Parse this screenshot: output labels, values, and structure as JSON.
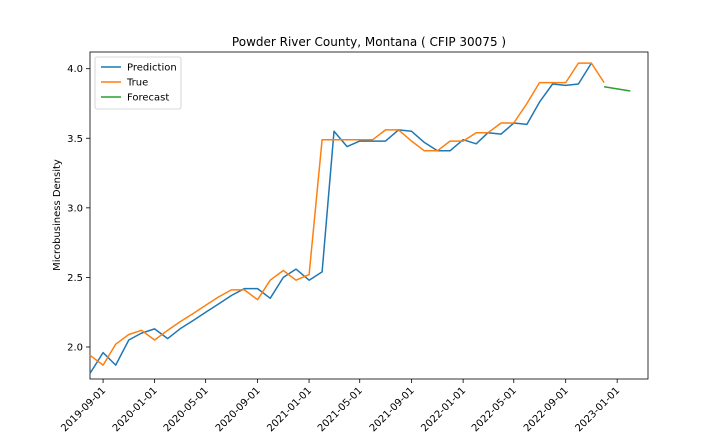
{
  "chart_data": {
    "type": "line",
    "title": "Powder River County, Montana ( CFIP 30075 )",
    "xlabel": "",
    "ylabel": "Microbusiness Density",
    "xlim": [
      "2019-08-01",
      "2023-03-15"
    ],
    "ylim": [
      1.77,
      4.12
    ],
    "x_ticks": [
      "2019-09-01",
      "2020-01-01",
      "2020-05-01",
      "2020-09-01",
      "2021-01-01",
      "2021-05-01",
      "2021-09-01",
      "2022-01-01",
      "2022-05-01",
      "2022-09-01",
      "2023-01-01"
    ],
    "y_ticks": [
      2.0,
      2.5,
      3.0,
      3.5,
      4.0
    ],
    "y_tick_labels": [
      "2.0",
      "2.5",
      "3.0",
      "3.5",
      "4.0"
    ],
    "legend_position": "top-left",
    "grid": false,
    "series": [
      {
        "name": "Prediction",
        "color": "#1f77b4",
        "x": [
          "2019-08-01",
          "2019-09-01",
          "2019-10-01",
          "2019-11-01",
          "2019-12-01",
          "2020-01-01",
          "2020-02-01",
          "2020-03-01",
          "2020-04-01",
          "2020-05-01",
          "2020-06-01",
          "2020-07-01",
          "2020-08-01",
          "2020-09-01",
          "2020-10-01",
          "2020-11-01",
          "2020-12-01",
          "2021-01-01",
          "2021-02-01",
          "2021-03-01",
          "2021-04-01",
          "2021-05-01",
          "2021-06-01",
          "2021-07-01",
          "2021-08-01",
          "2021-09-01",
          "2021-10-01",
          "2021-11-01",
          "2021-12-01",
          "2022-01-01",
          "2022-02-01",
          "2022-03-01",
          "2022-04-01",
          "2022-05-01",
          "2022-06-01",
          "2022-07-01",
          "2022-08-01",
          "2022-09-01",
          "2022-10-01",
          "2022-11-01"
        ],
        "values": [
          1.81,
          1.96,
          1.87,
          2.05,
          2.1,
          2.13,
          2.06,
          2.13,
          2.19,
          2.25,
          2.31,
          2.37,
          2.42,
          2.42,
          2.35,
          2.5,
          2.56,
          2.48,
          2.54,
          3.55,
          3.44,
          3.48,
          3.48,
          3.48,
          3.56,
          3.55,
          3.47,
          3.41,
          3.41,
          3.49,
          3.46,
          3.54,
          3.53,
          3.61,
          3.6,
          3.76,
          3.89,
          3.88,
          3.89,
          4.04
        ]
      },
      {
        "name": "True",
        "color": "#ff7f0e",
        "x": [
          "2019-08-01",
          "2019-09-01",
          "2019-10-01",
          "2019-11-01",
          "2019-12-01",
          "2020-01-01",
          "2020-02-01",
          "2020-03-01",
          "2020-04-01",
          "2020-05-01",
          "2020-06-01",
          "2020-07-01",
          "2020-08-01",
          "2020-09-01",
          "2020-10-01",
          "2020-11-01",
          "2020-12-01",
          "2021-01-01",
          "2021-02-01",
          "2021-03-01",
          "2021-04-01",
          "2021-05-01",
          "2021-06-01",
          "2021-07-01",
          "2021-08-01",
          "2021-09-01",
          "2021-10-01",
          "2021-11-01",
          "2021-12-01",
          "2022-01-01",
          "2022-02-01",
          "2022-03-01",
          "2022-04-01",
          "2022-05-01",
          "2022-06-01",
          "2022-07-01",
          "2022-08-01",
          "2022-09-01",
          "2022-10-01",
          "2022-11-01",
          "2022-12-01"
        ],
        "values": [
          1.94,
          1.87,
          2.02,
          2.09,
          2.12,
          2.05,
          2.12,
          2.18,
          2.24,
          2.3,
          2.36,
          2.41,
          2.41,
          2.34,
          2.48,
          2.55,
          2.48,
          2.52,
          3.49,
          3.49,
          3.49,
          3.49,
          3.49,
          3.56,
          3.56,
          3.48,
          3.41,
          3.41,
          3.48,
          3.48,
          3.54,
          3.54,
          3.61,
          3.61,
          3.75,
          3.9,
          3.9,
          3.9,
          4.04,
          4.04,
          3.9
        ]
      },
      {
        "name": "Forecast",
        "color": "#2ca02c",
        "x": [
          "2022-12-01",
          "2023-02-01"
        ],
        "values": [
          3.87,
          3.84
        ]
      }
    ]
  }
}
